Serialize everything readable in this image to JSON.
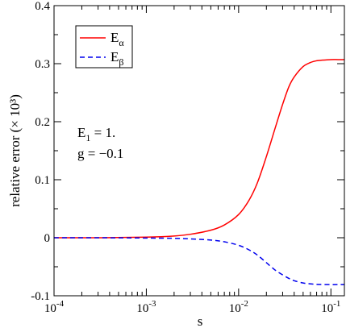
{
  "chart_data": {
    "type": "line",
    "title": "",
    "xlabel": "s",
    "ylabel": "relative error (× 10³)",
    "xscale": "log",
    "xlim": [
      0.0001,
      0.14
    ],
    "ylim": [
      -0.1,
      0.4
    ],
    "x_ticks": [
      {
        "value": 0.0001,
        "base": "10",
        "exp": "-4"
      },
      {
        "value": 0.001,
        "base": "10",
        "exp": "-3"
      },
      {
        "value": 0.01,
        "base": "10",
        "exp": "-2"
      },
      {
        "value": 0.1,
        "base": "10",
        "exp": "-1"
      }
    ],
    "y_ticks": [
      {
        "value": -0.1,
        "label": "-0.1"
      },
      {
        "value": 0.0,
        "label": "0"
      },
      {
        "value": 0.1,
        "label": "0.1"
      },
      {
        "value": 0.2,
        "label": "0.2"
      },
      {
        "value": 0.3,
        "label": "0.3"
      },
      {
        "value": 0.4,
        "label": "0.4"
      }
    ],
    "grid": false,
    "legend_position": "top-left",
    "annotations": [
      {
        "main": "E",
        "sub": "1",
        "rest": " = 1."
      },
      {
        "main": "g = −0.1",
        "sub": "",
        "rest": ""
      }
    ],
    "series": [
      {
        "name": "E",
        "name_sub": "α",
        "color": "#ff0000",
        "style": "solid",
        "x": [
          0.0001,
          0.0003,
          0.001,
          0.002,
          0.003,
          0.005,
          0.007,
          0.01,
          0.013,
          0.016,
          0.02,
          0.025,
          0.03,
          0.035,
          0.04,
          0.05,
          0.06,
          0.07,
          0.08,
          0.1,
          0.12,
          0.14
        ],
        "y": [
          0.0,
          0.0,
          0.001,
          0.003,
          0.006,
          0.013,
          0.022,
          0.04,
          0.065,
          0.095,
          0.14,
          0.19,
          0.23,
          0.26,
          0.277,
          0.295,
          0.302,
          0.305,
          0.306,
          0.307,
          0.307,
          0.307
        ]
      },
      {
        "name": "E",
        "name_sub": "β",
        "color": "#0000ee",
        "style": "dashed",
        "x": [
          0.0001,
          0.0003,
          0.001,
          0.002,
          0.003,
          0.005,
          0.007,
          0.01,
          0.013,
          0.016,
          0.02,
          0.025,
          0.03,
          0.035,
          0.04,
          0.05,
          0.06,
          0.07,
          0.08,
          0.1,
          0.12,
          0.14
        ],
        "y": [
          0.0,
          0.0,
          -0.0005,
          -0.001,
          -0.002,
          -0.004,
          -0.007,
          -0.013,
          -0.021,
          -0.03,
          -0.043,
          -0.056,
          -0.064,
          -0.07,
          -0.074,
          -0.078,
          -0.0795,
          -0.0803,
          -0.0806,
          -0.0808,
          -0.0808,
          -0.0808
        ]
      }
    ]
  }
}
